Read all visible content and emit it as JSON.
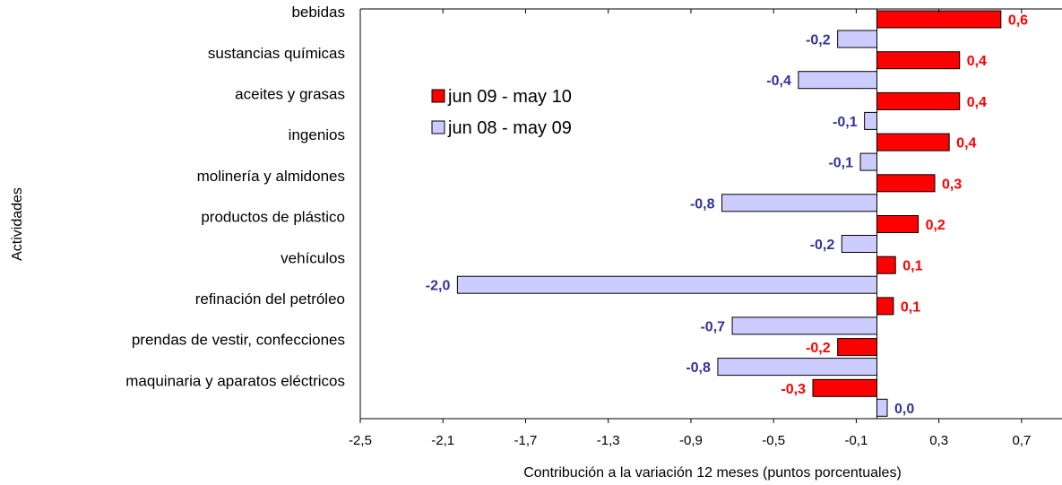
{
  "chart_data": {
    "type": "bar",
    "orientation": "horizontal",
    "categories": [
      "bebidas",
      "sustancias químicas",
      "aceites y grasas",
      "ingenios",
      "molinería y almidones",
      "productos de plástico",
      "vehículos",
      "refinación del petróleo",
      "prendas de vestir, confecciones",
      "maquinaria y aparatos eléctricos"
    ],
    "series": [
      {
        "name": "jun 09 - may 10",
        "color": "#ff0000",
        "values": [
          0.6,
          0.4,
          0.4,
          0.35,
          0.28,
          0.2,
          0.09,
          0.08,
          -0.19,
          -0.31
        ],
        "labels": [
          "0,6",
          "0,4",
          "0,4",
          "0,4",
          "0,3",
          "0,2",
          "0,1",
          "0,1",
          "-0,2",
          "-0,3"
        ],
        "label_color": "#ff0000"
      },
      {
        "name": "jun 08 - may  09",
        "color": "#ccccff",
        "values": [
          -0.19,
          -0.38,
          -0.06,
          -0.08,
          -0.75,
          -0.17,
          -2.03,
          -0.7,
          -0.77,
          0.05
        ],
        "labels": [
          "-0,2",
          "-0,4",
          "-0,1",
          "-0,1",
          "-0,8",
          "-0,2",
          "-2,0",
          "-0,7",
          "-0,8",
          "0,0"
        ],
        "label_color": "#333399"
      }
    ],
    "xlabel": "Contribución a la variación 12 meses (puntos porcentuales)",
    "ylabel": "Actividades",
    "xlim": [
      -2.5,
      0.9
    ],
    "xticks": [
      "-2,5",
      "-2,1",
      "-1,7",
      "-1,3",
      "-0,9",
      "-0,5",
      "-0,1",
      "0,3",
      "0,7"
    ],
    "xtick_values": [
      -2.5,
      -2.1,
      -1.7,
      -1.3,
      -0.9,
      -0.5,
      -0.1,
      0.3,
      0.7
    ],
    "grid": false,
    "legend_position": "top-left"
  }
}
